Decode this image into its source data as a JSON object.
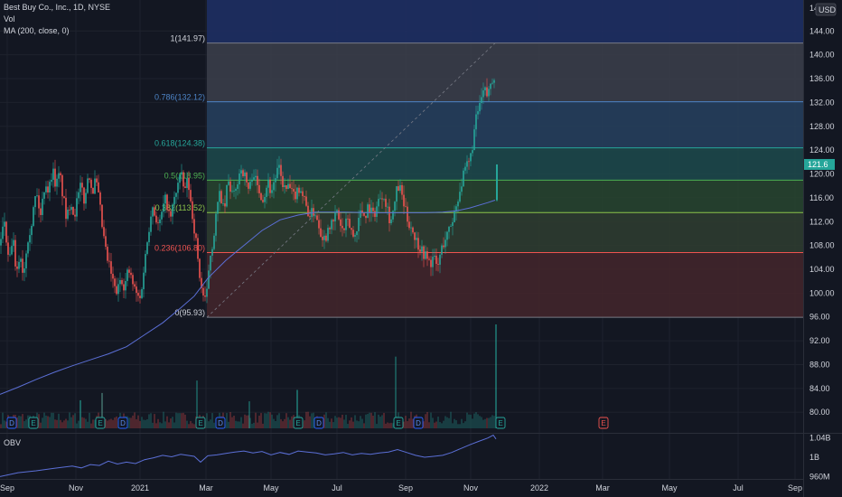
{
  "header": {
    "title": "Best Buy Co., Inc., 1D, NYSE",
    "vol_label": "Vol",
    "ma_label": "MA (200, close, 0)",
    "obv_label": "OBV",
    "currency": "USD",
    "top_tick": "14"
  },
  "colors": {
    "bg": "#131722",
    "up": "#26a69a",
    "down": "#ef5350",
    "ma": "#5b6fd6",
    "obv": "#5b6fd6",
    "fib_line": "#787b86",
    "grid": "#1e222d",
    "badge": "#ef5350"
  },
  "chart_data": {
    "type": "candlestick",
    "price_axis": {
      "ticks": [
        "144.00",
        "140.00",
        "136.00",
        "132.00",
        "128.00",
        "124.00",
        "120.00",
        "116.00",
        "112.00",
        "108.00",
        "104.00",
        "100.00",
        "96.00",
        "92.00",
        "88.00",
        "84.00",
        "80.00"
      ],
      "range": [
        78.0,
        148.5
      ],
      "current_price_label": "121.6"
    },
    "time_axis": {
      "labels": [
        "Sep",
        "Nov",
        "2021",
        "Mar",
        "May",
        "Jul",
        "Sep",
        "Nov",
        "2022",
        "Mar",
        "May",
        "Jul",
        "Sep"
      ]
    },
    "obv_axis": {
      "ticks": [
        "1.04B",
        "1B",
        "960M"
      ]
    },
    "fib_levels": [
      {
        "ratio": "1",
        "value": 141.97,
        "label": "1(141.97)",
        "color": "#787b86",
        "zone": "#3c3f4b"
      },
      {
        "ratio": "0.786",
        "value": 132.12,
        "label": "0.786(132.12)",
        "color": "#4d84c6",
        "zone": "#27415f"
      },
      {
        "ratio": "0.618",
        "value": 124.38,
        "label": "0.618(124.38)",
        "color": "#26a69a",
        "zone": "#1d4a4c"
      },
      {
        "ratio": "0.5",
        "value": 118.95,
        "label": "0.5(118.95)",
        "color": "#4caf50",
        "zone": "#28452f"
      },
      {
        "ratio": "0.382",
        "value": 113.52,
        "label": "0.382(113.52)",
        "color": "#8bc34a",
        "zone": "#2f3d30"
      },
      {
        "ratio": "0.236",
        "value": 106.8,
        "label": "0.236(106.80)",
        "color": "#ef5350",
        "zone": "#44262b"
      },
      {
        "ratio": "0",
        "value": 95.93,
        "label": "0(95.93)",
        "color": "#787b86",
        "zone": "#5a2026"
      }
    ],
    "fib_top_zone_color": "#1e2f63",
    "close_path": [
      [
        0,
        108
      ],
      [
        5,
        112
      ],
      [
        10,
        104
      ],
      [
        14,
        110
      ],
      [
        18,
        102
      ],
      [
        22,
        107
      ],
      [
        26,
        103
      ],
      [
        30,
        109
      ],
      [
        35,
        112
      ],
      [
        40,
        117
      ],
      [
        45,
        113
      ],
      [
        50,
        119
      ],
      [
        54,
        117
      ],
      [
        58,
        121
      ],
      [
        62,
        118
      ],
      [
        66,
        120
      ],
      [
        70,
        116
      ],
      [
        74,
        112
      ],
      [
        78,
        116
      ],
      [
        82,
        113
      ],
      [
        86,
        116
      ],
      [
        90,
        118
      ],
      [
        94,
        115
      ],
      [
        98,
        121
      ],
      [
        102,
        117
      ],
      [
        106,
        119
      ],
      [
        110,
        115
      ],
      [
        114,
        110
      ],
      [
        118,
        106
      ],
      [
        122,
        104
      ],
      [
        126,
        101
      ],
      [
        130,
        100
      ],
      [
        134,
        103
      ],
      [
        138,
        101
      ],
      [
        142,
        104
      ],
      [
        146,
        102
      ],
      [
        150,
        100
      ],
      [
        155,
        99
      ],
      [
        160,
        105
      ],
      [
        164,
        110
      ],
      [
        168,
        115
      ],
      [
        172,
        113
      ],
      [
        176,
        111
      ],
      [
        180,
        114
      ],
      [
        184,
        116
      ],
      [
        188,
        112
      ],
      [
        192,
        115
      ],
      [
        196,
        118
      ],
      [
        200,
        120
      ],
      [
        204,
        117
      ],
      [
        208,
        119
      ],
      [
        212,
        114
      ],
      [
        216,
        110
      ],
      [
        220,
        104
      ],
      [
        224,
        100
      ],
      [
        228,
        98
      ],
      [
        232,
        106
      ],
      [
        236,
        109
      ],
      [
        240,
        114
      ],
      [
        244,
        117
      ],
      [
        248,
        113
      ],
      [
        252,
        119
      ],
      [
        256,
        117
      ],
      [
        260,
        116
      ],
      [
        264,
        120
      ],
      [
        268,
        121
      ],
      [
        272,
        119
      ],
      [
        276,
        117
      ],
      [
        280,
        121
      ],
      [
        284,
        118
      ],
      [
        288,
        117
      ],
      [
        292,
        116
      ],
      [
        296,
        119
      ],
      [
        300,
        117
      ],
      [
        304,
        119
      ],
      [
        308,
        121
      ],
      [
        312,
        119
      ],
      [
        316,
        117
      ],
      [
        320,
        118
      ],
      [
        324,
        116
      ],
      [
        328,
        117
      ],
      [
        332,
        118
      ],
      [
        336,
        116
      ],
      [
        340,
        114
      ],
      [
        344,
        113
      ],
      [
        348,
        114
      ],
      [
        352,
        112
      ],
      [
        356,
        110
      ],
      [
        360,
        109
      ],
      [
        364,
        112
      ],
      [
        368,
        111
      ],
      [
        372,
        114
      ],
      [
        376,
        112
      ],
      [
        380,
        110
      ],
      [
        384,
        112
      ],
      [
        388,
        111
      ],
      [
        392,
        109
      ],
      [
        396,
        112
      ],
      [
        400,
        114
      ],
      [
        404,
        113
      ],
      [
        408,
        115
      ],
      [
        412,
        113
      ],
      [
        416,
        114
      ],
      [
        420,
        116
      ],
      [
        424,
        117
      ],
      [
        428,
        115
      ],
      [
        432,
        112
      ],
      [
        436,
        114
      ],
      [
        440,
        118
      ],
      [
        444,
        117
      ],
      [
        448,
        114
      ],
      [
        452,
        112
      ],
      [
        456,
        111
      ],
      [
        460,
        109
      ],
      [
        464,
        108
      ],
      [
        468,
        107
      ],
      [
        472,
        106
      ],
      [
        476,
        105
      ],
      [
        480,
        106
      ],
      [
        484,
        104
      ],
      [
        488,
        107
      ],
      [
        492,
        109
      ],
      [
        496,
        110
      ],
      [
        500,
        112
      ],
      [
        504,
        114
      ],
      [
        508,
        117
      ],
      [
        512,
        119
      ],
      [
        516,
        121
      ],
      [
        520,
        122
      ],
      [
        524,
        126
      ],
      [
        528,
        130
      ],
      [
        532,
        132
      ],
      [
        536,
        134
      ],
      [
        540,
        133
      ],
      [
        544,
        136
      ],
      [
        548,
        137
      ]
    ],
    "last_bar": {
      "open": 115.6,
      "high": 121.6,
      "low": 115.4,
      "close": 121.6
    },
    "ma_points": [
      [
        0,
        83
      ],
      [
        20,
        84.2
      ],
      [
        40,
        85.5
      ],
      [
        60,
        86.7
      ],
      [
        80,
        87.8
      ],
      [
        100,
        88.8
      ],
      [
        120,
        89.8
      ],
      [
        140,
        91
      ],
      [
        160,
        93
      ],
      [
        180,
        95
      ],
      [
        200,
        97.5
      ],
      [
        215,
        99.5
      ],
      [
        230,
        102.5
      ],
      [
        250,
        105.5
      ],
      [
        270,
        108
      ],
      [
        290,
        110.5
      ],
      [
        310,
        112.3
      ],
      [
        330,
        113.1
      ],
      [
        350,
        113.6
      ],
      [
        380,
        113.6
      ],
      [
        410,
        113.5
      ],
      [
        440,
        113.5
      ],
      [
        470,
        113.5
      ],
      [
        490,
        113.6
      ],
      [
        505,
        113.8
      ],
      [
        520,
        114.3
      ],
      [
        540,
        115.2
      ],
      [
        548,
        115.6
      ]
    ],
    "obv_points": [
      [
        0,
        0.96
      ],
      [
        20,
        0.968
      ],
      [
        40,
        0.972
      ],
      [
        60,
        0.977
      ],
      [
        80,
        0.982
      ],
      [
        90,
        0.978
      ],
      [
        100,
        0.985
      ],
      [
        110,
        0.983
      ],
      [
        120,
        0.992
      ],
      [
        130,
        0.986
      ],
      [
        140,
        0.99
      ],
      [
        150,
        0.987
      ],
      [
        160,
        0.995
      ],
      [
        170,
        0.999
      ],
      [
        180,
        1.004
      ],
      [
        190,
        1.001
      ],
      [
        200,
        1.006
      ],
      [
        215,
        1.002
      ],
      [
        222,
        0.99
      ],
      [
        230,
        1.003
      ],
      [
        240,
        1.005
      ],
      [
        250,
        1.008
      ],
      [
        260,
        1.011
      ],
      [
        270,
        1.013
      ],
      [
        280,
        1.009
      ],
      [
        290,
        1.012
      ],
      [
        300,
        1.005
      ],
      [
        310,
        1.01
      ],
      [
        320,
        1.006
      ],
      [
        330,
        1.013
      ],
      [
        340,
        1.011
      ],
      [
        350,
        1.009
      ],
      [
        360,
        1.005
      ],
      [
        370,
        1.007
      ],
      [
        380,
        1.01
      ],
      [
        390,
        1.005
      ],
      [
        400,
        1.008
      ],
      [
        410,
        1.006
      ],
      [
        420,
        1.009
      ],
      [
        430,
        1.011
      ],
      [
        440,
        1.016
      ],
      [
        450,
        1.01
      ],
      [
        460,
        1.004
      ],
      [
        470,
        1.0
      ],
      [
        480,
        1.002
      ],
      [
        490,
        1.004
      ],
      [
        500,
        1.01
      ],
      [
        510,
        1.018
      ],
      [
        520,
        1.026
      ],
      [
        530,
        1.033
      ],
      [
        540,
        1.04
      ],
      [
        546,
        1.046
      ],
      [
        549,
        1.038
      ]
    ],
    "volume_spikes": [
      {
        "x": 549,
        "rel": 1.0
      },
      {
        "x": 438,
        "rel": 0.69
      },
      {
        "x": 218,
        "rel": 0.46
      },
      {
        "x": 329,
        "rel": 0.37
      },
      {
        "x": 113,
        "rel": 0.34
      },
      {
        "x": 89,
        "rel": 0.27
      },
      {
        "x": 276,
        "rel": 0.26
      }
    ],
    "event_badges": [
      {
        "x": 13,
        "text": "D"
      },
      {
        "x": 37,
        "text": "E"
      },
      {
        "x": 111,
        "text": "E"
      },
      {
        "x": 136,
        "text": "D"
      },
      {
        "x": 222,
        "text": "E"
      },
      {
        "x": 244,
        "text": "D"
      },
      {
        "x": 330,
        "text": "E"
      },
      {
        "x": 353,
        "text": "D"
      },
      {
        "x": 441,
        "text": "E"
      },
      {
        "x": 463,
        "text": "D"
      },
      {
        "x": 554,
        "text": "E"
      },
      {
        "x": 668,
        "text": "E"
      }
    ]
  }
}
